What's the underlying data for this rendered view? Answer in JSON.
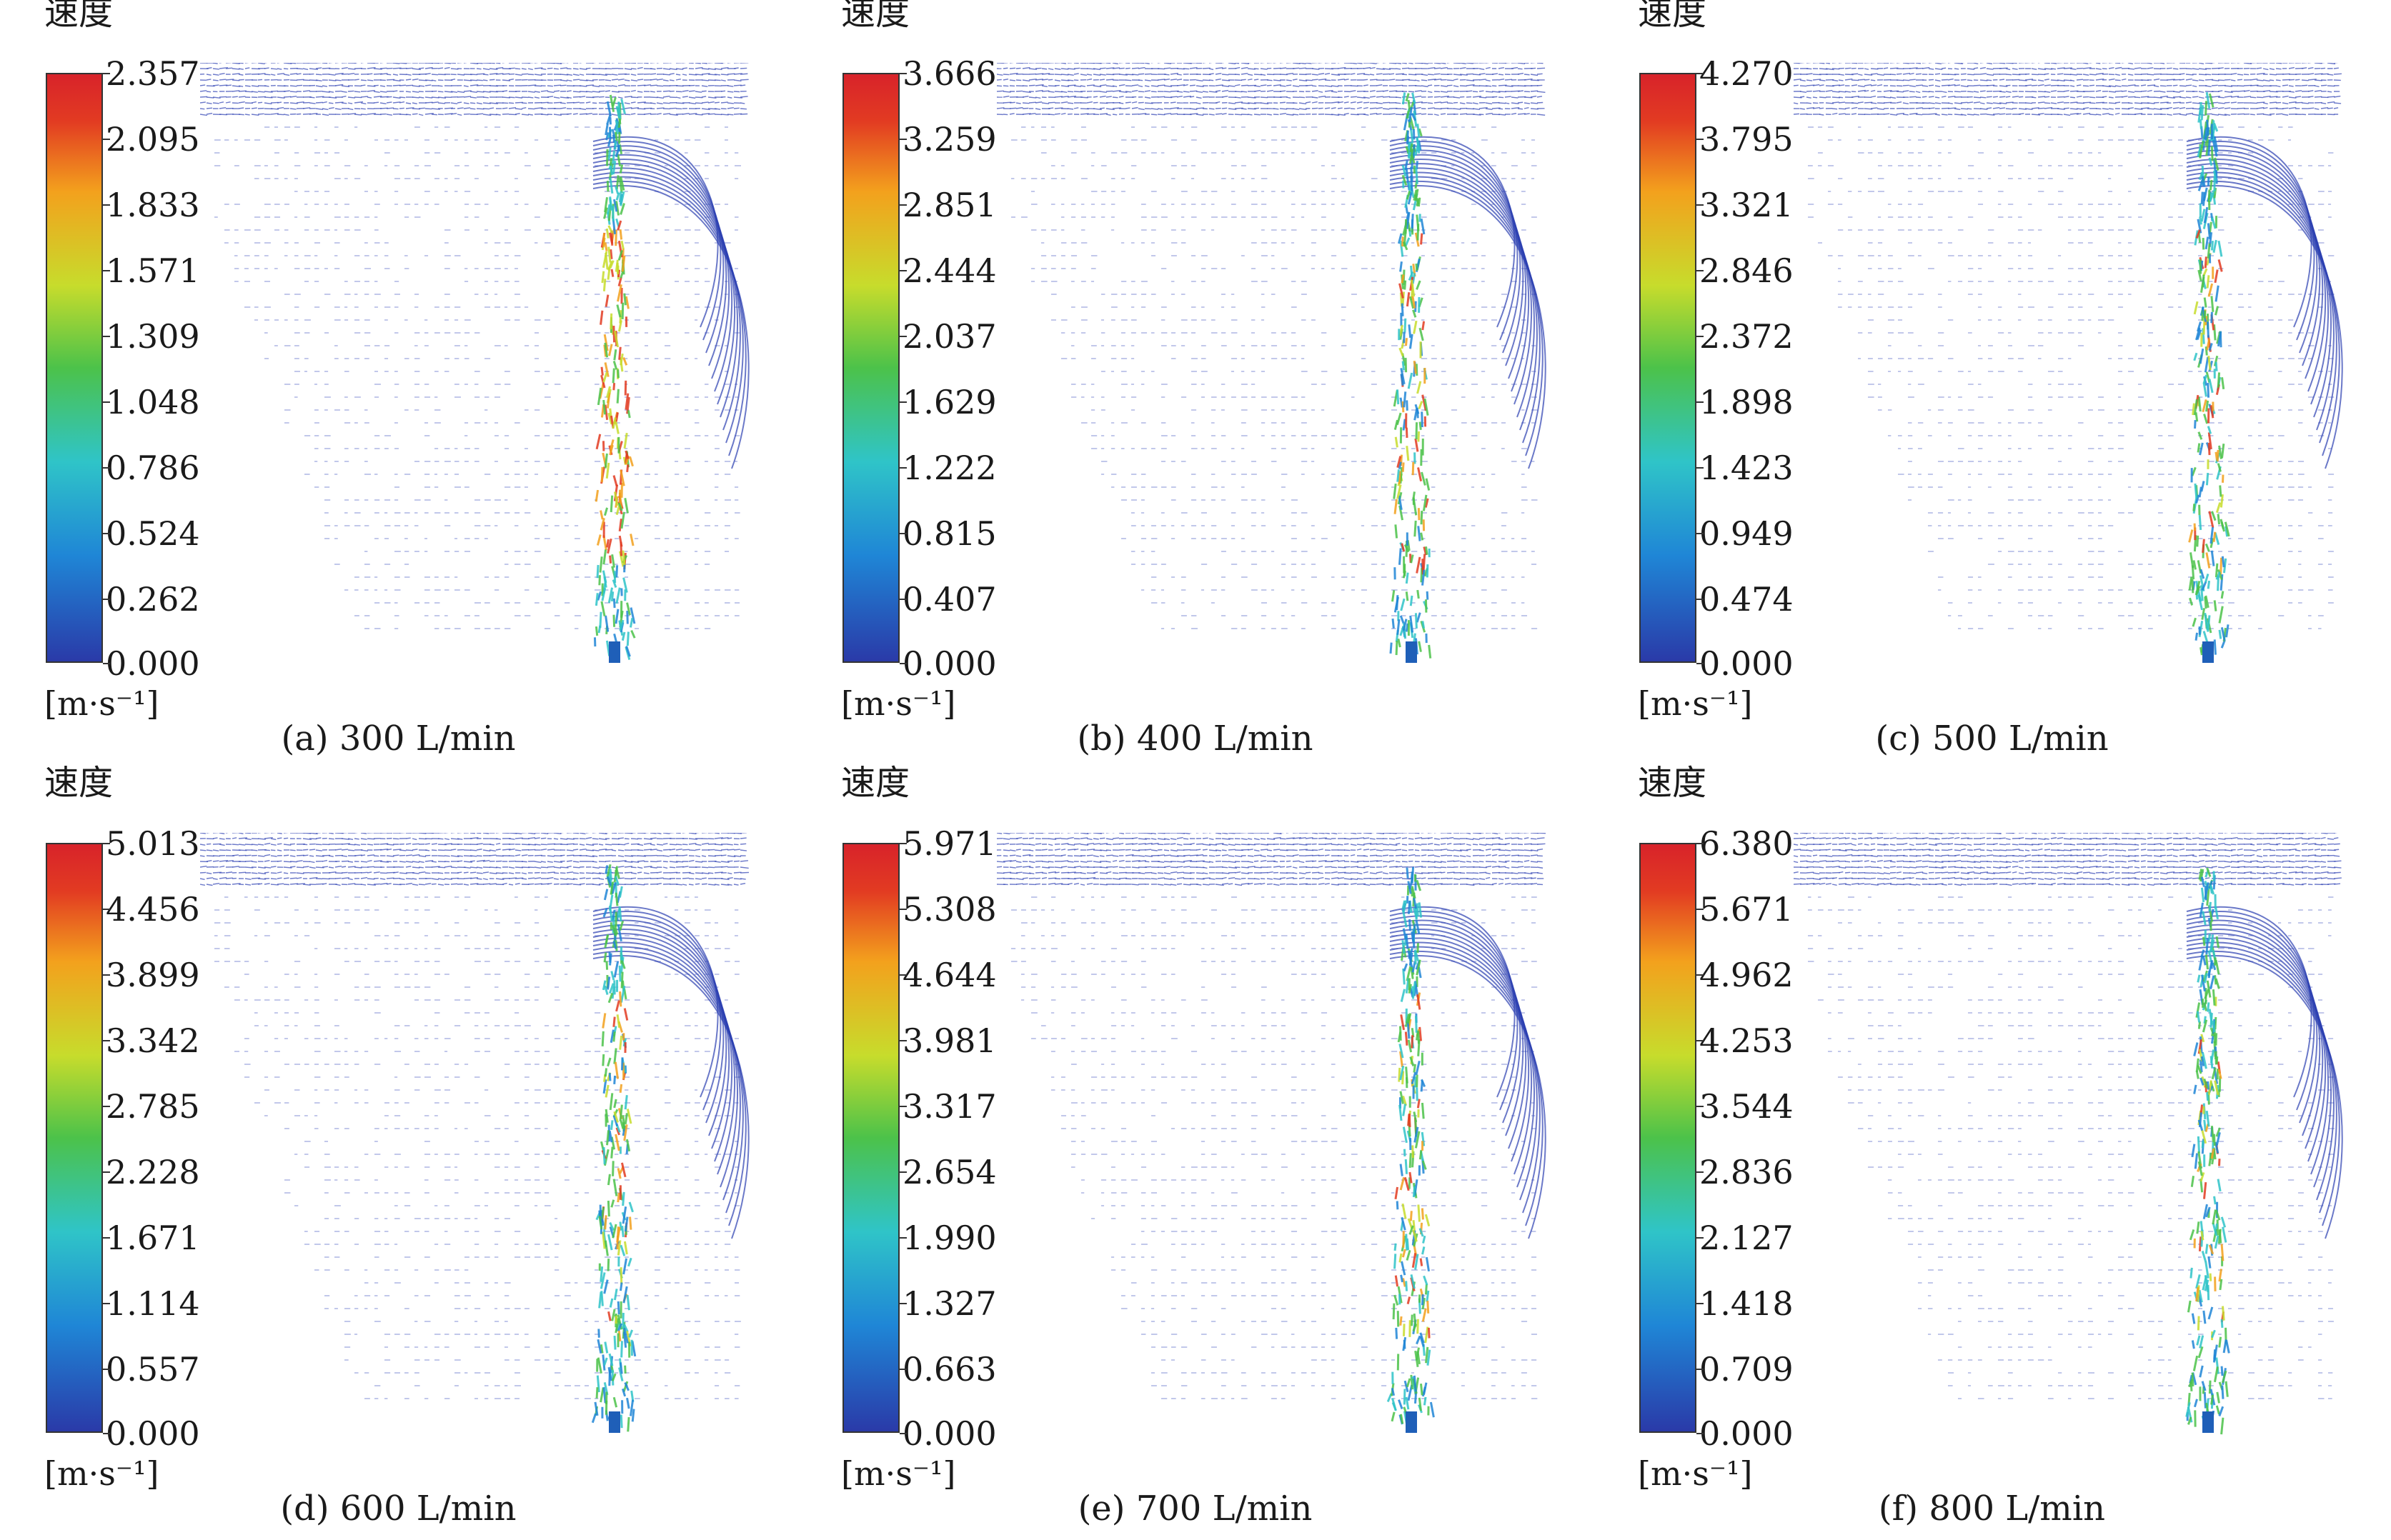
{
  "panels": [
    {
      "legend_title": "速度",
      "unit": "[m·s⁻¹]",
      "caption": "(a) 300 L/min",
      "ticks": [
        "2.357",
        "2.095",
        "1.833",
        "1.571",
        "1.309",
        "1.048",
        "0.786",
        "0.524",
        "0.262",
        "0.000"
      ],
      "jet_intensity": 1.0
    },
    {
      "legend_title": "速度",
      "unit": "[m·s⁻¹]",
      "caption": "(b) 400 L/min",
      "ticks": [
        "3.666",
        "3.259",
        "2.851",
        "2.444",
        "2.037",
        "1.629",
        "1.222",
        "0.815",
        "0.407",
        "0.000"
      ],
      "jet_intensity": 0.55
    },
    {
      "legend_title": "速度",
      "unit": "[m·s⁻¹]",
      "caption": "(c) 500 L/min",
      "ticks": [
        "4.270",
        "3.795",
        "3.321",
        "2.846",
        "2.372",
        "1.898",
        "1.423",
        "0.949",
        "0.474",
        "0.000"
      ],
      "jet_intensity": 0.45
    },
    {
      "legend_title": "速度",
      "unit": "[m·s⁻¹]",
      "caption": "(d) 600 L/min",
      "ticks": [
        "5.013",
        "4.456",
        "3.899",
        "3.342",
        "2.785",
        "2.228",
        "1.671",
        "1.114",
        "0.557",
        "0.000"
      ],
      "jet_intensity": 0.4
    },
    {
      "legend_title": "速度",
      "unit": "[m·s⁻¹]",
      "caption": "(e) 700 L/min",
      "ticks": [
        "5.971",
        "5.308",
        "4.644",
        "3.981",
        "3.317",
        "2.654",
        "1.990",
        "1.327",
        "0.663",
        "0.000"
      ],
      "jet_intensity": 0.5
    },
    {
      "legend_title": "速度",
      "unit": "[m·s⁻¹]",
      "caption": "(f) 800 L/min",
      "ticks": [
        "6.380",
        "5.671",
        "4.962",
        "4.253",
        "3.544",
        "2.836",
        "2.127",
        "1.418",
        "0.709",
        "0.000"
      ],
      "jet_intensity": 0.35
    }
  ]
}
